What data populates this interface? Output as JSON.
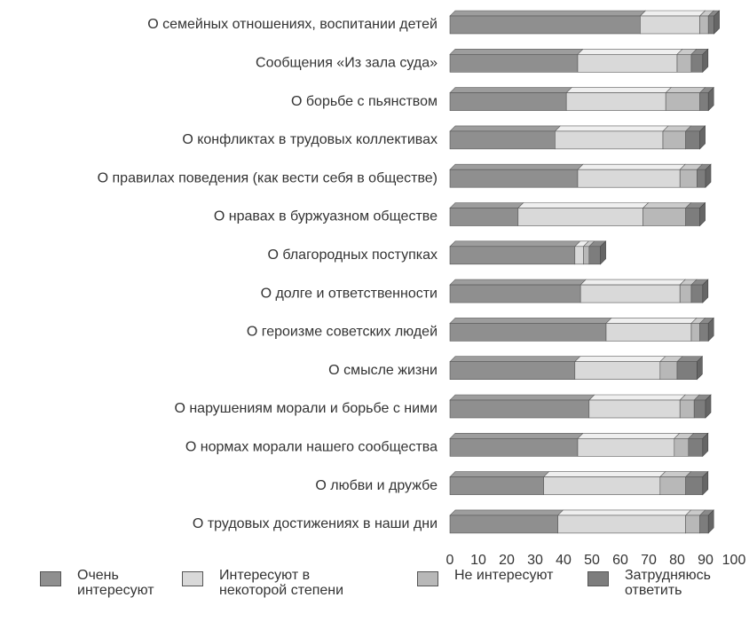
{
  "chart_data": {
    "type": "stacked-barh",
    "categories": [
      "О семейных отношениях, воспитании детей",
      "Сообщения «Из зала суда»",
      "О борьбе с пьянством",
      "О конфликтах в трудовых коллективах",
      "О правилах поведения (как вести себя в обществе)",
      "О нравах в буржуазном обществе",
      "О благородных поступках",
      "О долге и ответственности",
      "О героизме советских людей",
      "О смысле жизни",
      "О нарушениям морали и борьбе с ними",
      "О нормах морали нашего сообщества",
      "О любви и дружбе",
      "О трудовых достижениях в наши дни"
    ],
    "series": [
      {
        "name": "Очень интересуют",
        "color": "#8f8f8f",
        "values": [
          67,
          45,
          41,
          37,
          45,
          24,
          44,
          46,
          55,
          44,
          49,
          45,
          33,
          38
        ]
      },
      {
        "name": "Интересуют в некоторой степени",
        "color": "#d9d9d9",
        "values": [
          21,
          35,
          35,
          38,
          36,
          44,
          3,
          35,
          30,
          30,
          32,
          34,
          41,
          45
        ]
      },
      {
        "name": "Не интересуют",
        "color": "#b8b8b8",
        "values": [
          3,
          5,
          12,
          8,
          6,
          15,
          2,
          4,
          3,
          6,
          5,
          5,
          9,
          5
        ]
      },
      {
        "name": "Затрудняюсь ответить",
        "color": "#7d7d7d",
        "values": [
          2,
          4,
          3,
          5,
          3,
          5,
          4,
          4,
          3,
          7,
          4,
          5,
          6,
          3
        ]
      }
    ],
    "xlim": [
      0,
      100
    ],
    "xticks": [
      0,
      10,
      20,
      30,
      40,
      50,
      60,
      70,
      80,
      90,
      100
    ]
  }
}
